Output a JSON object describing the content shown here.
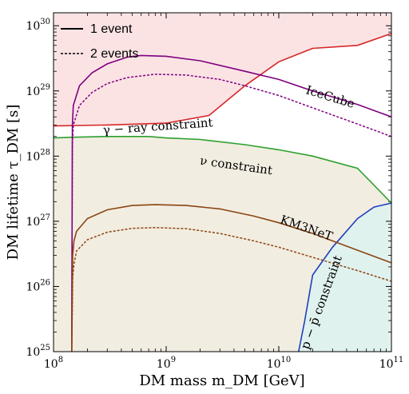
{
  "chart_data": {
    "type": "line",
    "xlabel": "DM mass m_DM [GeV]",
    "ylabel": "DM lifetime τ_DM [s]",
    "xscale": "log",
    "yscale": "log",
    "xlim": [
      100000000.0,
      100000000000.0
    ],
    "ylim": [
      1e+25,
      1.58e+30
    ],
    "x_ticks": [
      {
        "value": 100000000.0,
        "base": "10",
        "exp": "8"
      },
      {
        "value": 1000000000.0,
        "base": "10",
        "exp": "9"
      },
      {
        "value": 10000000000.0,
        "base": "10",
        "exp": "10"
      },
      {
        "value": 100000000000.0,
        "base": "10",
        "exp": "11"
      }
    ],
    "y_ticks": [
      {
        "value": 1e+25,
        "base": "10",
        "exp": "25"
      },
      {
        "value": 1e+26,
        "base": "10",
        "exp": "26"
      },
      {
        "value": 1e+27,
        "base": "10",
        "exp": "27"
      },
      {
        "value": 1e+28,
        "base": "10",
        "exp": "28"
      },
      {
        "value": 1e+29,
        "base": "10",
        "exp": "29"
      },
      {
        "value": 1e+30,
        "base": "10",
        "exp": "30"
      }
    ],
    "legend": {
      "position": "top-left",
      "entries": [
        {
          "label": "1 event",
          "style": "solid"
        },
        {
          "label": "2 events",
          "style": "dashed"
        }
      ]
    },
    "regions": [
      {
        "label": "γ − ray constraint",
        "color": "#d62728",
        "fill": "#fbe3e4",
        "points": [
          [
            100000000.0,
            2.9e+28
          ],
          [
            300000000.0,
            3e+28
          ],
          [
            1000000000.0,
            3.2e+28
          ],
          [
            2400000000.0,
            4.2e+28
          ],
          [
            5000000000.0,
            1.2e+29
          ],
          [
            10000000000.0,
            2.8e+29
          ],
          [
            20000000000.0,
            4.5e+29
          ],
          [
            50000000000.0,
            5e+29
          ],
          [
            100000000000.0,
            7.6e+29
          ]
        ]
      },
      {
        "label": "ν constraint",
        "color": "#2ca02c",
        "fill": "#f2ede1",
        "points": [
          [
            100000000.0,
            1.9e+28
          ],
          [
            150000000.0,
            1.95e+28
          ],
          [
            300000000.0,
            2e+28
          ],
          [
            700000000.0,
            2e+28
          ],
          [
            1000000000.0,
            1.9e+28
          ],
          [
            2000000000.0,
            1.8e+28
          ],
          [
            5000000000.0,
            1.5e+28
          ],
          [
            10000000000.0,
            1.25e+28
          ],
          [
            20000000000.0,
            1e+28
          ],
          [
            50000000000.0,
            6.5e+27
          ],
          [
            100000000000.0,
            1.9e+27
          ]
        ]
      },
      {
        "label": "p − p̄ constraint",
        "color": "#1f3fbf",
        "fill": "#e0f2ee",
        "points": [
          [
            15000000000.0,
            1e+25
          ],
          [
            17000000000.0,
            3e+25
          ],
          [
            20000000000.0,
            1.5e+26
          ],
          [
            30000000000.0,
            4e+26
          ],
          [
            50000000000.0,
            1.1e+27
          ],
          [
            70000000000.0,
            1.65e+27
          ],
          [
            100000000000.0,
            1.9e+27
          ]
        ]
      }
    ],
    "series": [
      {
        "name": "IceCube",
        "color": "#800080",
        "one_event": [
          [
            145000000.0,
            1e+25
          ],
          [
            147000000.0,
            3e+28
          ],
          [
            150000000.0,
            6e+28
          ],
          [
            170000000.0,
            1.2e+29
          ],
          [
            220000000.0,
            1.9e+29
          ],
          [
            300000000.0,
            2.6e+29
          ],
          [
            450000000.0,
            3.3e+29
          ],
          [
            600000000.0,
            3.5e+29
          ],
          [
            1000000000.0,
            3.4e+29
          ],
          [
            2000000000.0,
            2.9e+29
          ],
          [
            5000000000.0,
            2e+29
          ],
          [
            10000000000.0,
            1.5e+29
          ],
          [
            20000000000.0,
            1e+29
          ],
          [
            50000000000.0,
            6.2e+28
          ],
          [
            100000000000.0,
            4e+28
          ]
        ],
        "two_events": [
          [
            145000000.0,
            1e+25
          ],
          [
            147000000.0,
            1.6e+28
          ],
          [
            150000000.0,
            3e+28
          ],
          [
            170000000.0,
            6e+28
          ],
          [
            220000000.0,
            9.5e+28
          ],
          [
            300000000.0,
            1.3e+29
          ],
          [
            450000000.0,
            1.6e+29
          ],
          [
            800000000.0,
            1.8e+29
          ],
          [
            1500000000.0,
            1.75e+29
          ],
          [
            3000000000.0,
            1.5e+29
          ],
          [
            5000000000.0,
            1.2e+29
          ],
          [
            10000000000.0,
            8.5e+28
          ],
          [
            20000000000.0,
            5.5e+28
          ],
          [
            50000000000.0,
            3.1e+28
          ],
          [
            100000000000.0,
            2e+28
          ]
        ]
      },
      {
        "name": "KM3NeT",
        "color": "#8b4513",
        "one_event": [
          [
            145000000.0,
            1e+25
          ],
          [
            148000000.0,
            3e+26
          ],
          [
            152000000.0,
            5e+26
          ],
          [
            160000000.0,
            7e+26
          ],
          [
            200000000.0,
            1.1e+27
          ],
          [
            300000000.0,
            1.5e+27
          ],
          [
            500000000.0,
            1.75e+27
          ],
          [
            800000000.0,
            1.8e+27
          ],
          [
            1500000000.0,
            1.75e+27
          ],
          [
            3000000000.0,
            1.55e+27
          ],
          [
            6000000000.0,
            1.2e+27
          ],
          [
            10000000000.0,
            9.5e+26
          ],
          [
            20000000000.0,
            6.5e+26
          ],
          [
            50000000000.0,
            3.6e+26
          ],
          [
            100000000000.0,
            2.3e+26
          ]
        ],
        "two_events": [
          [
            145000000.0,
            1e+25
          ],
          [
            148000000.0,
            1.4e+26
          ],
          [
            152000000.0,
            2.2e+26
          ],
          [
            160000000.0,
            3.5e+26
          ],
          [
            200000000.0,
            5.2e+26
          ],
          [
            300000000.0,
            6.8e+26
          ],
          [
            500000000.0,
            7.8e+26
          ],
          [
            800000000.0,
            8e+26
          ],
          [
            1500000000.0,
            7.7e+26
          ],
          [
            3000000000.0,
            6.5e+26
          ],
          [
            6000000000.0,
            5e+26
          ],
          [
            10000000000.0,
            4e+26
          ],
          [
            20000000000.0,
            2.8e+26
          ],
          [
            50000000000.0,
            1.75e+26
          ],
          [
            100000000000.0,
            1.2e+26
          ]
        ]
      }
    ]
  }
}
